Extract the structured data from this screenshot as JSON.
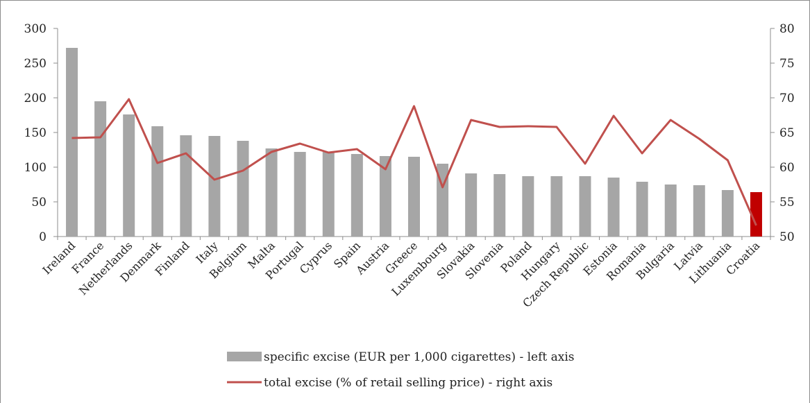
{
  "chart_data": {
    "type": "bar",
    "title": "",
    "categories": [
      "Ireland",
      "France",
      "Netherlands",
      "Denmark",
      "Finland",
      "Italy",
      "Belgium",
      "Malta",
      "Portugal",
      "Cyprus",
      "Spain",
      "Austria",
      "Greece",
      "Luxembourg",
      "Slovakia",
      "Slovenia",
      "Poland",
      "Hungary",
      "Czech Republic",
      "Estonia",
      "Romania",
      "Bulgaria",
      "Latvia",
      "Lithuania",
      "Croatia"
    ],
    "series": [
      {
        "name": "specific excise (EUR per 1,000 cigarettes) - left axis",
        "type": "bar",
        "axis": "left",
        "color": "#a6a6a6",
        "highlight": {
          "category": "Croatia",
          "color": "#c00000"
        },
        "values": [
          272,
          195,
          176,
          159,
          146,
          145,
          138,
          127,
          122,
          122,
          119,
          116,
          115,
          105,
          91,
          90,
          87,
          87,
          87,
          85,
          79,
          75,
          74,
          67,
          64
        ]
      },
      {
        "name": "total excise (% of retail selling price) - right axis",
        "type": "line",
        "axis": "right",
        "color": "#c0504d",
        "values": [
          64.2,
          64.3,
          69.8,
          60.6,
          62.0,
          58.2,
          59.5,
          62.2,
          63.4,
          62.1,
          62.6,
          59.7,
          68.8,
          57.1,
          66.8,
          65.8,
          65.9,
          65.8,
          60.5,
          67.4,
          62.0,
          66.8,
          64.1,
          61.0,
          51.6
        ]
      }
    ],
    "y_left": {
      "ylim": [
        0,
        300
      ],
      "ticks": [
        "0",
        "50",
        "100",
        "150",
        "200",
        "250",
        "300"
      ]
    },
    "y_right": {
      "ylim": [
        50,
        80
      ],
      "ticks": [
        "50",
        "55",
        "60",
        "65",
        "70",
        "75",
        "80"
      ]
    },
    "grid": false,
    "legend_position": "bottom"
  }
}
